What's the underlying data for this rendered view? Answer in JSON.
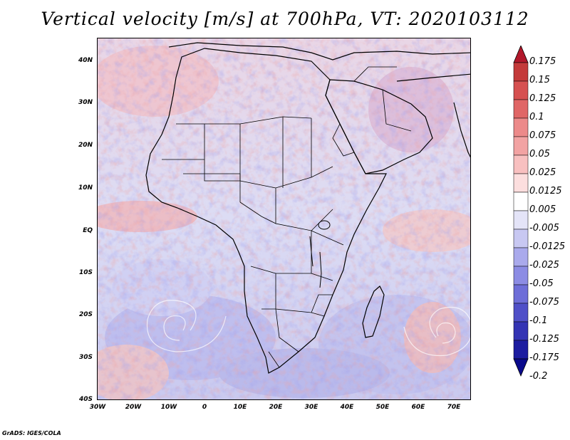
{
  "title": "Vertical velocity [m/s] at 700hPa, VT: 2020103112",
  "credit": "GrADS: IGES/COLA",
  "map": {
    "region": "Africa",
    "lat_ticks": [
      "40N",
      "30N",
      "20N",
      "10N",
      "EQ",
      "10S",
      "20S",
      "30S",
      "40S"
    ],
    "lon_ticks": [
      "30W",
      "20W",
      "10W",
      "0",
      "10E",
      "20E",
      "30E",
      "40E",
      "50E",
      "60E",
      "70E"
    ],
    "land_line_color": "#000000"
  },
  "colorbar": {
    "levels": [
      "0.175",
      "0.15",
      "0.125",
      "0.1",
      "0.075",
      "0.05",
      "0.025",
      "0.0125",
      "0.005",
      "-0.005",
      "-0.0125",
      "-0.025",
      "-0.05",
      "-0.075",
      "-0.1",
      "-0.125",
      "-0.175",
      "-0.2"
    ],
    "colors": [
      "#b2182b",
      "#c43a3a",
      "#d65050",
      "#e06666",
      "#ec8a8a",
      "#f2a3a3",
      "#f8c0c0",
      "#fcdede",
      "#ffffff",
      "#e4e4f8",
      "#c8c8f2",
      "#aaaaec",
      "#8c8ce4",
      "#6e6ed8",
      "#5050c8",
      "#3434b4",
      "#1c1ca0",
      "#0a0a8c"
    ]
  }
}
